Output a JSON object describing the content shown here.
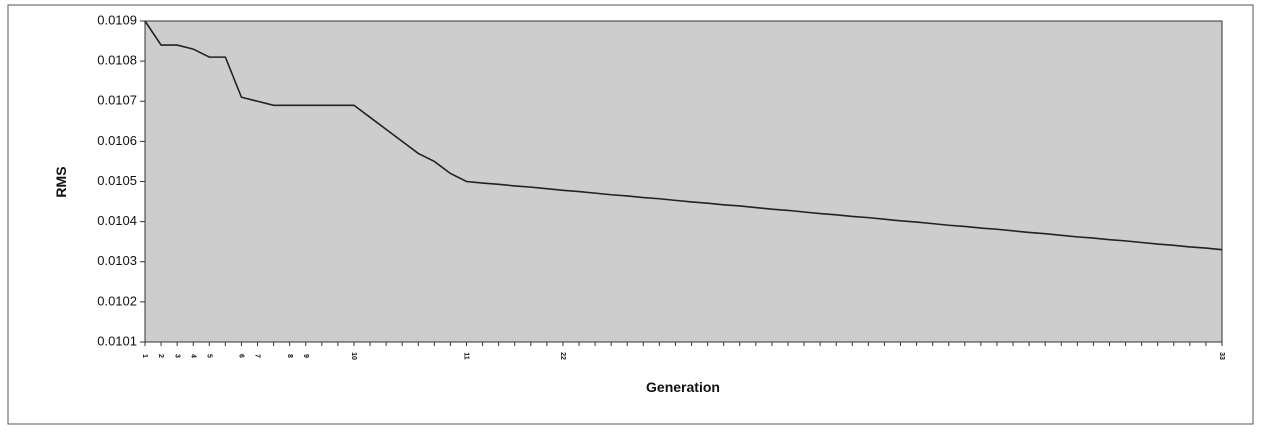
{
  "chart_data": {
    "type": "line",
    "y_label": "RMS",
    "x_label": "Generation",
    "categories": [
      "1",
      "2",
      "3",
      "4",
      "5",
      null,
      "6",
      "7",
      null,
      "8",
      "9",
      null,
      null,
      "10",
      null,
      null,
      null,
      null,
      null,
      null,
      "11",
      null,
      null,
      null,
      null,
      null,
      "22",
      null,
      null,
      null,
      null,
      null,
      null,
      null,
      null,
      null,
      null,
      null,
      null,
      null,
      null,
      null,
      null,
      null,
      null,
      null,
      null,
      null,
      null,
      null,
      null,
      null,
      null,
      null,
      null,
      null,
      null,
      null,
      null,
      null,
      null,
      null,
      null,
      null,
      null,
      null,
      null,
      "33"
    ],
    "series": [
      {
        "color": "#222222",
        "values": [
          0.0109,
          0.01084,
          0.01084,
          0.01083,
          0.01081,
          0.01081,
          0.01071,
          0.0107,
          0.01069,
          0.01069,
          0.01069,
          0.01069,
          0.01069,
          0.01069,
          0.01066,
          0.01063,
          0.0106,
          0.01057,
          0.01055,
          0.01052,
          0.0105,
          0.010496,
          0.010493,
          0.010489,
          0.010486,
          0.010482,
          0.010478,
          0.010475,
          0.010471,
          0.010467,
          0.010464,
          0.01046,
          0.010457,
          0.010453,
          0.010449,
          0.010446,
          0.010442,
          0.010439,
          0.010435,
          0.010431,
          0.010428,
          0.010424,
          0.01042,
          0.010417,
          0.010413,
          0.01041,
          0.010406,
          0.010402,
          0.010399,
          0.010395,
          0.010391,
          0.010388,
          0.010384,
          0.010381,
          0.010377,
          0.010373,
          0.01037,
          0.010366,
          0.010362,
          0.010359,
          0.010355,
          0.010352,
          0.010348,
          0.010344,
          0.010341,
          0.010337,
          0.010334,
          0.01033
        ]
      }
    ],
    "ylim": [
      0.0101,
      0.0109
    ],
    "yticks": [
      0.0101,
      0.0102,
      0.0103,
      0.0104,
      0.0105,
      0.0106,
      0.0107,
      0.0108,
      0.0109
    ],
    "plot_background": "#cdcdcd"
  }
}
